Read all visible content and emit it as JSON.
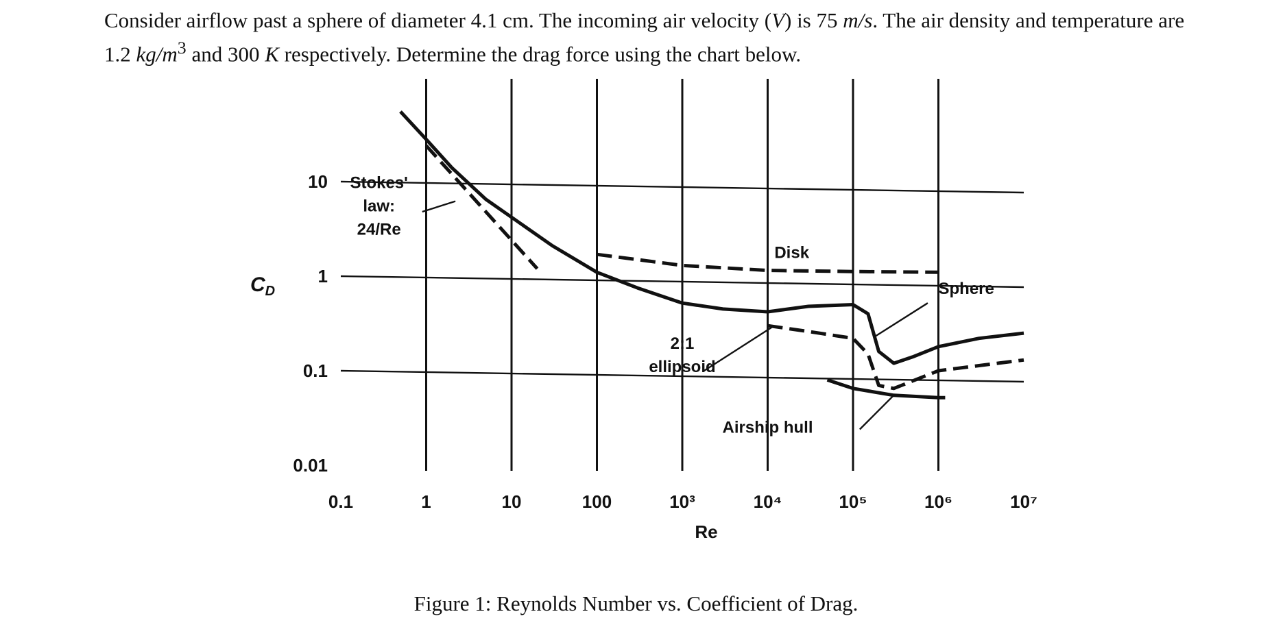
{
  "problem": {
    "part1": "Consider airflow past a sphere of diameter 4.1 cm. The incoming air velocity (",
    "v_symbol": "V",
    "part2": ") is 75 ",
    "v_unit": "m/s",
    "part3": ". The air density and temperature are 1.2 ",
    "rho_unit": "kg/m",
    "rho_exp": "3",
    "part4": " and 300 ",
    "t_unit": "K",
    "part5": " respectively. Determine the drag force using the chart below."
  },
  "caption": "Figure 1: Reynolds Number vs. Coefficient of Drag.",
  "chart_data": {
    "type": "line",
    "xscale": "log",
    "yscale": "log",
    "xlabel": "Re",
    "ylabel": "C_D",
    "xlim": [
      0.1,
      10000000
    ],
    "ylim": [
      0.01,
      100
    ],
    "x_ticks": [
      0.1,
      1,
      10,
      100,
      1000,
      10000,
      100000,
      1000000,
      10000000
    ],
    "x_tick_labels": [
      "0.1",
      "1",
      "10",
      "100",
      "10³",
      "10⁴",
      "10⁵",
      "10⁶",
      "10⁷"
    ],
    "y_ticks": [
      0.01,
      0.1,
      1,
      10
    ],
    "y_tick_labels": [
      "0.01",
      "0.1",
      "1",
      "10"
    ],
    "grid": true,
    "series": [
      {
        "name": "Sphere",
        "style": "solid",
        "x": [
          0.5,
          1,
          2,
          5,
          10,
          30,
          100,
          300,
          1000,
          3000,
          10000,
          30000,
          100000,
          150000,
          200000,
          300000,
          500000,
          1000000,
          3000000,
          10000000
        ],
        "y": [
          55,
          28,
          14,
          6.5,
          4.2,
          2.1,
          1.1,
          0.75,
          0.52,
          0.45,
          0.42,
          0.48,
          0.5,
          0.4,
          0.16,
          0.12,
          0.14,
          0.18,
          0.22,
          0.25
        ]
      },
      {
        "name": "Stokes' law: 24/Re",
        "style": "dashed",
        "x": [
          1,
          2,
          5,
          10,
          20
        ],
        "y": [
          24,
          12,
          4.8,
          2.4,
          1.2
        ]
      },
      {
        "name": "Disk",
        "style": "dashed",
        "x": [
          100,
          1000,
          10000,
          100000,
          1000000
        ],
        "y": [
          1.7,
          1.3,
          1.15,
          1.12,
          1.1
        ]
      },
      {
        "name": "2:1 ellipsoid",
        "style": "dashed",
        "x": [
          10000,
          30000,
          100000,
          150000,
          200000,
          300000,
          1000000,
          10000000
        ],
        "y": [
          0.3,
          0.26,
          0.22,
          0.15,
          0.07,
          0.065,
          0.1,
          0.13
        ]
      },
      {
        "name": "Airship hull",
        "style": "solid",
        "x": [
          50000,
          100000,
          300000,
          1000000,
          1200000
        ],
        "y": [
          0.08,
          0.065,
          0.055,
          0.052,
          0.052
        ]
      }
    ],
    "annotations": [
      {
        "text_lines": [
          "Stokes'",
          "law:",
          "24/Re"
        ],
        "points_to": "Stokes' law: 24/Re"
      },
      {
        "text_lines": [
          "Disk"
        ],
        "points_to": "Disk"
      },
      {
        "text_lines": [
          "Sphere"
        ],
        "points_to": "Sphere"
      },
      {
        "text_lines": [
          "2:1",
          "ellipsoid"
        ],
        "points_to": "2:1 ellipsoid"
      },
      {
        "text_lines": [
          "Airship hull"
        ],
        "points_to": "Airship hull"
      }
    ]
  }
}
